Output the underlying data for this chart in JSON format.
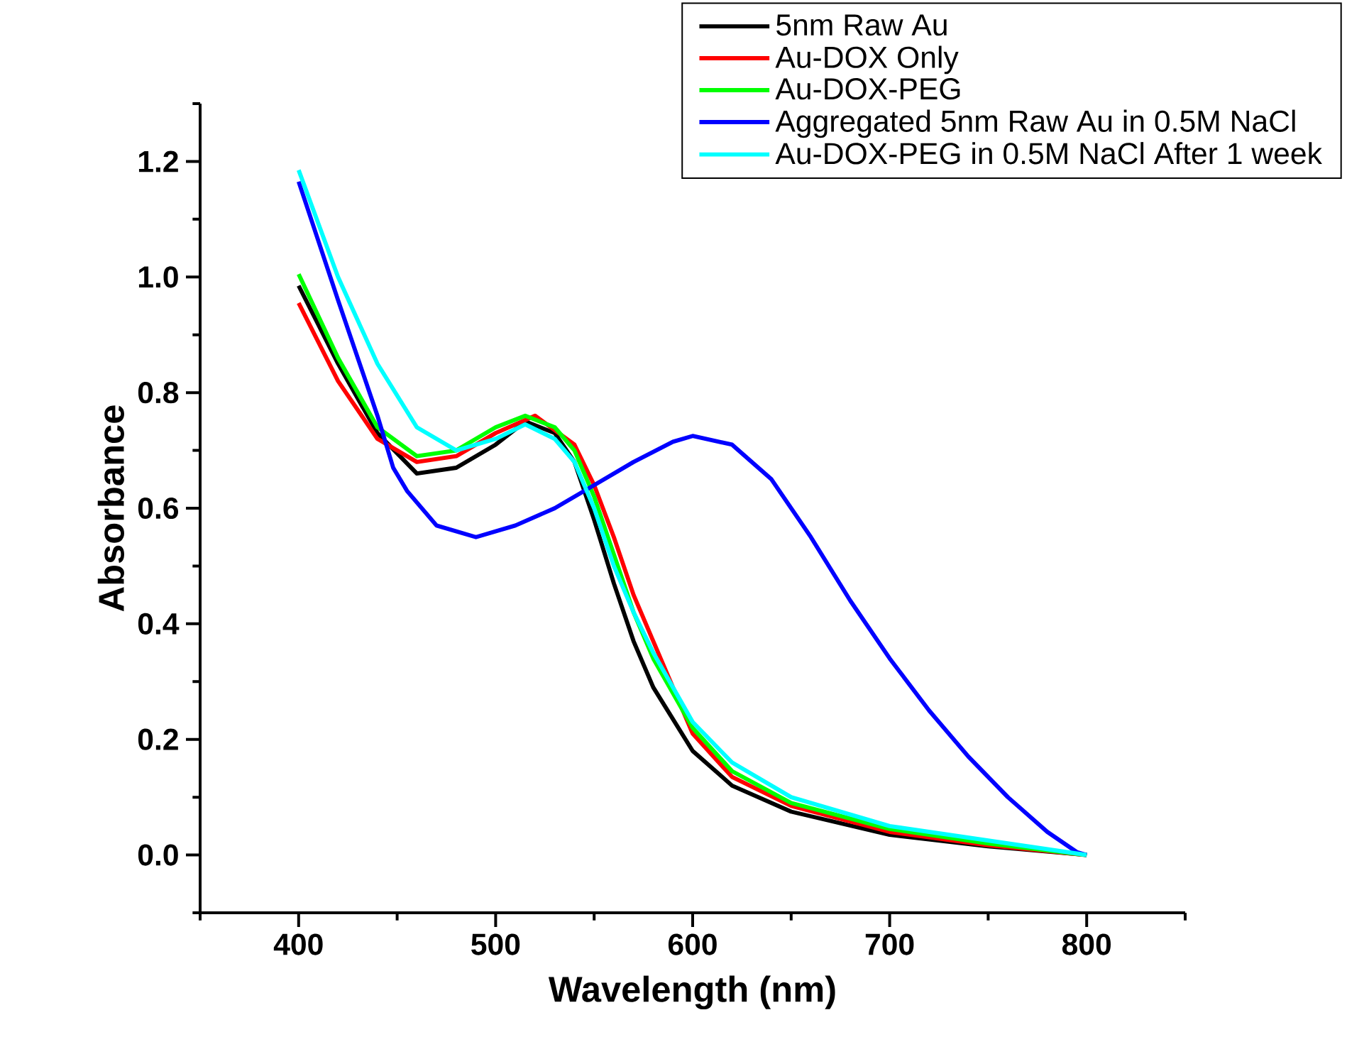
{
  "chart_data": {
    "type": "line",
    "xlabel": "Wavelength (nm)",
    "ylabel": "Absorbance",
    "xlim": [
      350,
      850
    ],
    "ylim": [
      -0.1,
      1.3
    ],
    "xticks": [
      {
        "value": 350,
        "label": null
      },
      400,
      {
        "value": 450,
        "label": null
      },
      500,
      {
        "value": 550,
        "label": null
      },
      600,
      {
        "value": 650,
        "label": null
      },
      700,
      {
        "value": 750,
        "label": null
      },
      800,
      {
        "value": 850,
        "label": null
      }
    ],
    "yticks": [
      {
        "value": -0.1,
        "label": null
      },
      {
        "value": 0.0,
        "label": "0.0"
      },
      {
        "value": 0.1,
        "label": null
      },
      {
        "value": 0.2,
        "label": "0.2"
      },
      {
        "value": 0.3,
        "label": null
      },
      {
        "value": 0.4,
        "label": "0.4"
      },
      {
        "value": 0.5,
        "label": null
      },
      {
        "value": 0.6,
        "label": "0.6"
      },
      {
        "value": 0.7,
        "label": null
      },
      {
        "value": 0.8,
        "label": "0.8"
      },
      {
        "value": 0.9,
        "label": null
      },
      {
        "value": 1.0,
        "label": "1.0"
      },
      {
        "value": 1.1,
        "label": null
      },
      {
        "value": 1.2,
        "label": "1.2"
      },
      {
        "value": 1.3,
        "label": null
      }
    ],
    "legend": "top right",
    "grid": false,
    "marker": "none",
    "line_style": "solid",
    "series": [
      {
        "name": "5nm Raw Au",
        "color": "#000000",
        "x": [
          400,
          420,
          440,
          460,
          480,
          500,
          515,
          530,
          540,
          550,
          560,
          570,
          580,
          600,
          620,
          650,
          700,
          750,
          800
        ],
        "values": [
          0.985,
          0.85,
          0.73,
          0.66,
          0.67,
          0.71,
          0.75,
          0.73,
          0.68,
          0.58,
          0.47,
          0.37,
          0.29,
          0.18,
          0.12,
          0.075,
          0.035,
          0.015,
          0.0
        ]
      },
      {
        "name": "Au-DOX Only",
        "color": "#ff0000",
        "x": [
          400,
          420,
          440,
          460,
          480,
          500,
          520,
          540,
          550,
          560,
          570,
          580,
          600,
          620,
          650,
          700,
          750,
          800
        ],
        "values": [
          0.955,
          0.82,
          0.72,
          0.68,
          0.69,
          0.73,
          0.76,
          0.71,
          0.64,
          0.55,
          0.45,
          0.37,
          0.21,
          0.135,
          0.085,
          0.04,
          0.017,
          0.0
        ]
      },
      {
        "name": "Au-DOX-PEG",
        "color": "#00ff00",
        "x": [
          400,
          420,
          440,
          460,
          480,
          500,
          515,
          530,
          540,
          550,
          560,
          570,
          580,
          600,
          620,
          650,
          700,
          750,
          800
        ],
        "values": [
          1.005,
          0.86,
          0.74,
          0.69,
          0.7,
          0.74,
          0.76,
          0.74,
          0.7,
          0.62,
          0.52,
          0.42,
          0.34,
          0.22,
          0.145,
          0.09,
          0.045,
          0.02,
          0.0
        ]
      },
      {
        "name": "Aggregated 5nm Raw Au in 0.5M NaCl",
        "color": "#0000ff",
        "x": [
          400,
          420,
          430,
          440,
          448,
          455,
          470,
          490,
          510,
          530,
          550,
          570,
          590,
          600,
          620,
          640,
          660,
          680,
          700,
          720,
          740,
          760,
          780,
          795,
          800
        ],
        "values": [
          1.165,
          0.96,
          0.86,
          0.76,
          0.67,
          0.63,
          0.57,
          0.55,
          0.57,
          0.6,
          0.64,
          0.68,
          0.715,
          0.725,
          0.71,
          0.65,
          0.55,
          0.44,
          0.34,
          0.25,
          0.17,
          0.1,
          0.04,
          0.005,
          0.0
        ]
      },
      {
        "name": "Au-DOX-PEG in 0.5M NaCl After 1 week",
        "color": "#00ffff",
        "x": [
          400,
          420,
          440,
          460,
          480,
          500,
          515,
          530,
          540,
          550,
          560,
          570,
          580,
          600,
          620,
          650,
          700,
          750,
          800
        ],
        "values": [
          1.185,
          1.0,
          0.85,
          0.74,
          0.7,
          0.72,
          0.745,
          0.72,
          0.68,
          0.6,
          0.5,
          0.42,
          0.35,
          0.23,
          0.16,
          0.1,
          0.05,
          0.025,
          0.0
        ]
      }
    ]
  }
}
